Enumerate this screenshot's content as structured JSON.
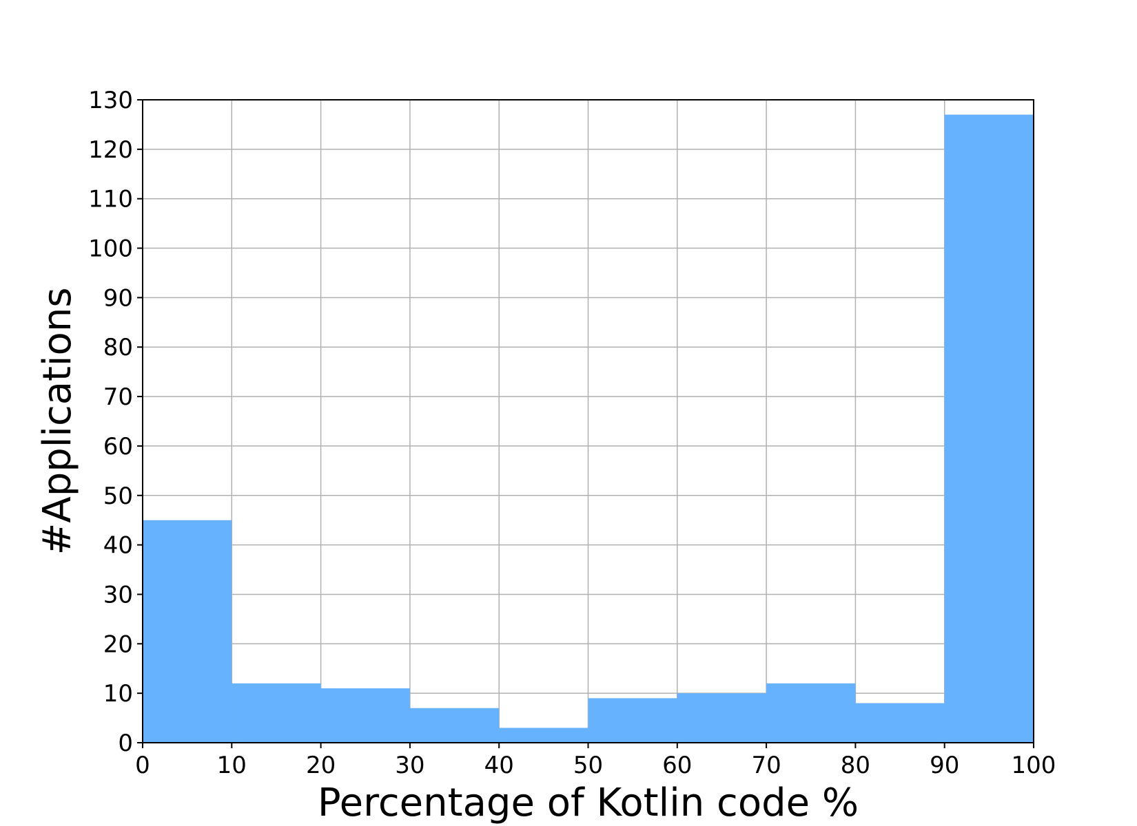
{
  "chart_data": {
    "type": "bar",
    "title": "",
    "xlabel": "Percentage of Kotlin code %",
    "ylabel": "#Applications",
    "bins": [
      {
        "from": 0,
        "to": 10,
        "value": 45
      },
      {
        "from": 10,
        "to": 20,
        "value": 12
      },
      {
        "from": 20,
        "to": 30,
        "value": 11
      },
      {
        "from": 30,
        "to": 40,
        "value": 7
      },
      {
        "from": 40,
        "to": 50,
        "value": 3
      },
      {
        "from": 50,
        "to": 60,
        "value": 9
      },
      {
        "from": 60,
        "to": 70,
        "value": 10
      },
      {
        "from": 70,
        "to": 80,
        "value": 12
      },
      {
        "from": 80,
        "to": 90,
        "value": 8
      },
      {
        "from": 90,
        "to": 100,
        "value": 127
      }
    ],
    "xlim": [
      0,
      100
    ],
    "ylim": [
      0,
      130
    ],
    "x_ticks": [
      0,
      10,
      20,
      30,
      40,
      50,
      60,
      70,
      80,
      90,
      100
    ],
    "y_ticks": [
      0,
      10,
      20,
      30,
      40,
      50,
      60,
      70,
      80,
      90,
      100,
      110,
      120,
      130
    ],
    "grid": true,
    "bar_color": "#66b2ff",
    "grid_color": "#b0b0b0"
  }
}
